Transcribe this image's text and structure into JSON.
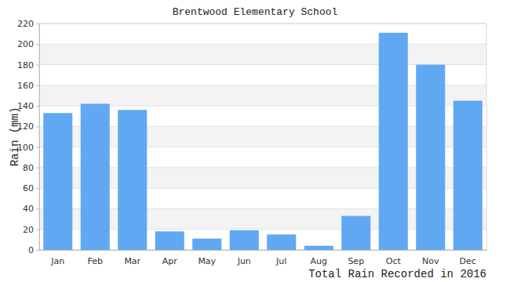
{
  "chart_data": {
    "type": "bar",
    "title": "Brentwood Elementary School",
    "xlabel": "Total Rain Recorded in 2016",
    "ylabel": "Rain (mm)",
    "categories": [
      "Jan",
      "Feb",
      "Mar",
      "Apr",
      "May",
      "Jun",
      "Jul",
      "Aug",
      "Sep",
      "Oct",
      "Nov",
      "Dec"
    ],
    "values": [
      133,
      142,
      136,
      18,
      11,
      19,
      15,
      4,
      33,
      211,
      180,
      145
    ],
    "color": "#61a8f3",
    "ylim": [
      0,
      220
    ],
    "yticks": [
      0,
      20,
      40,
      60,
      80,
      100,
      120,
      140,
      160,
      180,
      200,
      220
    ],
    "grid": true
  }
}
